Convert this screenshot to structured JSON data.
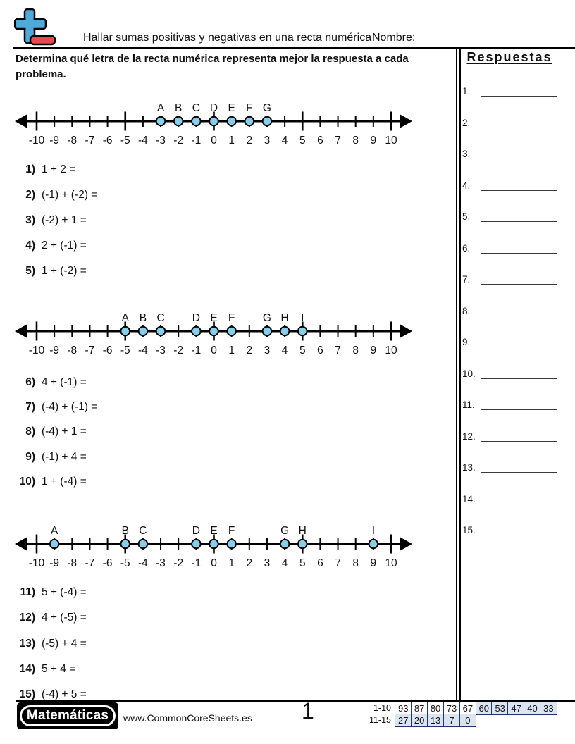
{
  "header": {
    "title": "Hallar sumas positivas y negativas en una recta numérica",
    "name_label": "Nombre:",
    "icon": "plus-minus-icon"
  },
  "instructions": "Determina qué letra de la recta numérica representa mejor la respuesta a cada problema.",
  "colors": {
    "icon_blue": "#4fa9d9",
    "icon_red": "#e9484c",
    "point_fill": "#85cfec",
    "table_highlight": "#dbe5f1",
    "table_border": "#1f3864"
  },
  "number_lines": [
    {
      "min": -10,
      "max": 10,
      "points": [
        {
          "letter": "A",
          "value": -3
        },
        {
          "letter": "B",
          "value": -2
        },
        {
          "letter": "C",
          "value": -1
        },
        {
          "letter": "D",
          "value": 0
        },
        {
          "letter": "E",
          "value": 1
        },
        {
          "letter": "F",
          "value": 2
        },
        {
          "letter": "G",
          "value": 3
        }
      ]
    },
    {
      "min": -10,
      "max": 10,
      "points": [
        {
          "letter": "A",
          "value": -5
        },
        {
          "letter": "B",
          "value": -4
        },
        {
          "letter": "C",
          "value": -3
        },
        {
          "letter": "D",
          "value": -1
        },
        {
          "letter": "E",
          "value": 0
        },
        {
          "letter": "F",
          "value": 1
        },
        {
          "letter": "G",
          "value": 3
        },
        {
          "letter": "H",
          "value": 4
        },
        {
          "letter": "I",
          "value": 5
        }
      ]
    },
    {
      "min": -10,
      "max": 10,
      "points": [
        {
          "letter": "A",
          "value": -9
        },
        {
          "letter": "B",
          "value": -5
        },
        {
          "letter": "C",
          "value": -4
        },
        {
          "letter": "D",
          "value": -1
        },
        {
          "letter": "E",
          "value": 0
        },
        {
          "letter": "F",
          "value": 1
        },
        {
          "letter": "G",
          "value": 4
        },
        {
          "letter": "H",
          "value": 5
        },
        {
          "letter": "I",
          "value": 9
        }
      ]
    }
  ],
  "problems": {
    "groups": [
      {
        "items": [
          {
            "num": "1)",
            "expr": "1 + 2 ="
          },
          {
            "num": "2)",
            "expr": "(-1) + (-2) ="
          },
          {
            "num": "3)",
            "expr": "(-2) + 1 ="
          },
          {
            "num": "4)",
            "expr": "2 + (-1) ="
          },
          {
            "num": "5)",
            "expr": "1 + (-2) ="
          }
        ]
      },
      {
        "items": [
          {
            "num": "6)",
            "expr": "4 + (-1) ="
          },
          {
            "num": "7)",
            "expr": "(-4) + (-1) ="
          },
          {
            "num": "8)",
            "expr": "(-4) + 1 ="
          },
          {
            "num": "9)",
            "expr": "(-1) + 4 ="
          },
          {
            "num": "10)",
            "expr": "1 + (-4) ="
          }
        ]
      },
      {
        "items": [
          {
            "num": "11)",
            "expr": "5 + (-4) ="
          },
          {
            "num": "12)",
            "expr": "4 + (-5) ="
          },
          {
            "num": "13)",
            "expr": "(-5) + 4 ="
          },
          {
            "num": "14)",
            "expr": "5 + 4 ="
          },
          {
            "num": "15)",
            "expr": "(-4) + 5 ="
          }
        ]
      }
    ]
  },
  "answers": {
    "title": "Respuestas",
    "items": [
      "1.",
      "2.",
      "3.",
      "4.",
      "5.",
      "6.",
      "7.",
      "8.",
      "9.",
      "10.",
      "11.",
      "12.",
      "13.",
      "14.",
      "15."
    ]
  },
  "footer": {
    "brand": "Matemáticas",
    "website": "www.CommonCoreSheets.es",
    "page": "1",
    "score_table": {
      "rows": [
        {
          "label": "1-10",
          "cells": [
            {
              "v": "93",
              "hl": false
            },
            {
              "v": "87",
              "hl": false
            },
            {
              "v": "80",
              "hl": false
            },
            {
              "v": "73",
              "hl": false
            },
            {
              "v": "67",
              "hl": false
            },
            {
              "v": "60",
              "hl": true
            },
            {
              "v": "53",
              "hl": true
            },
            {
              "v": "47",
              "hl": true
            },
            {
              "v": "40",
              "hl": true
            },
            {
              "v": "33",
              "hl": true
            }
          ]
        },
        {
          "label": "11-15",
          "cells": [
            {
              "v": "27",
              "hl": true
            },
            {
              "v": "20",
              "hl": true
            },
            {
              "v": "13",
              "hl": true
            },
            {
              "v": "7",
              "hl": true
            },
            {
              "v": "0",
              "hl": true
            }
          ]
        }
      ]
    }
  }
}
